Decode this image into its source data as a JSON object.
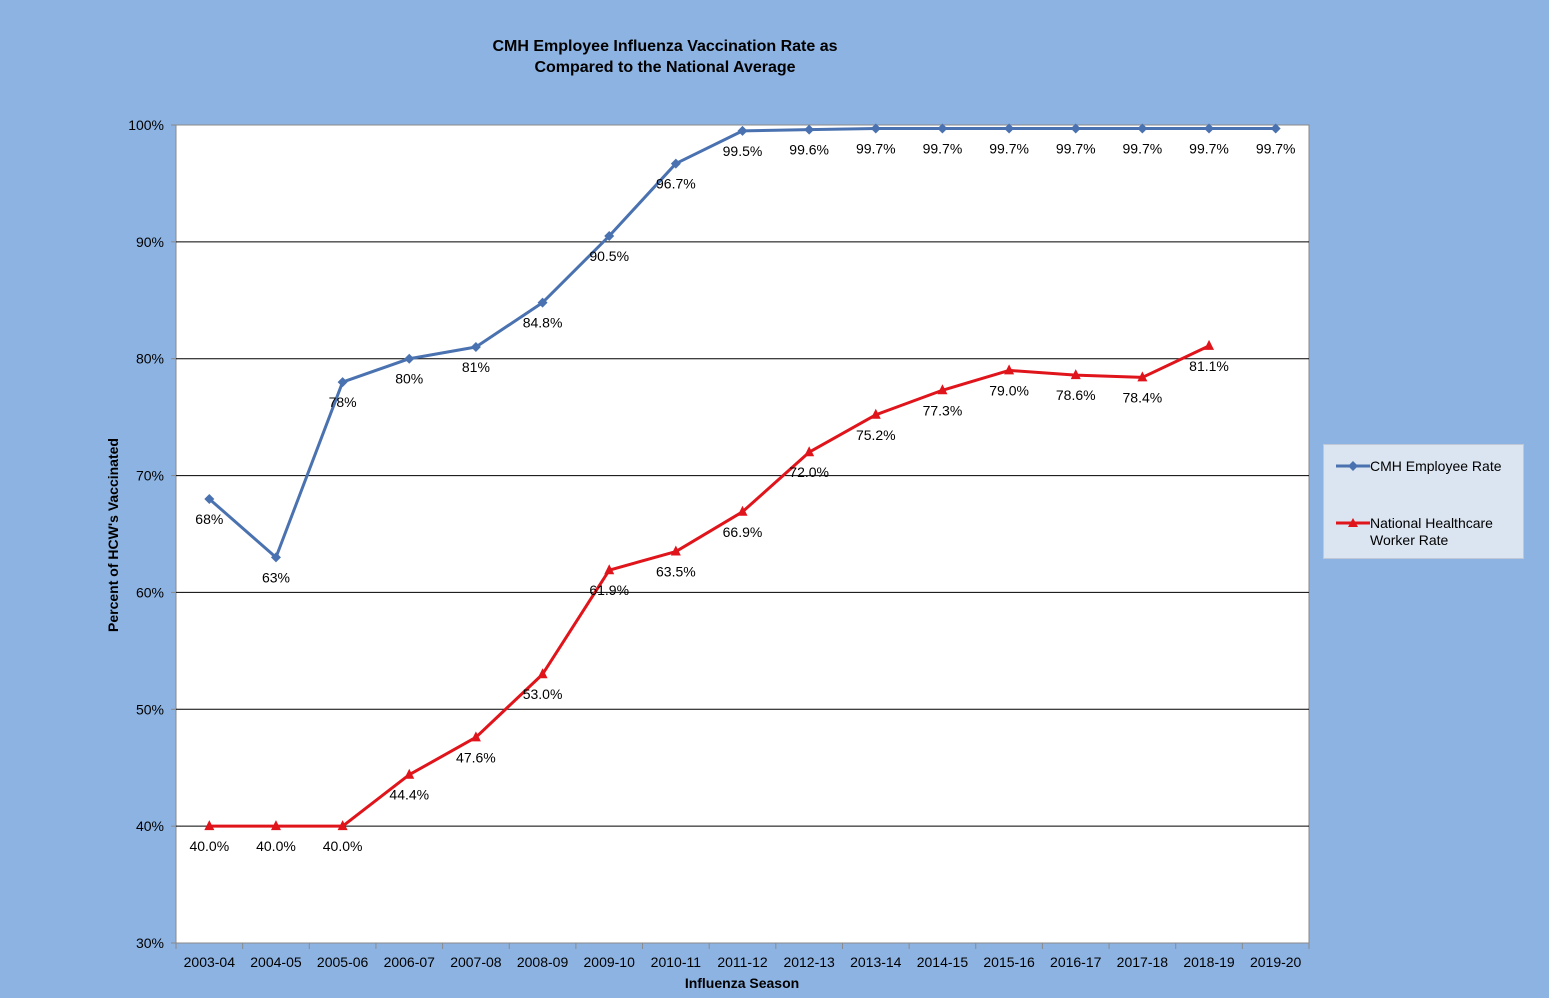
{
  "chart_data": {
    "type": "line",
    "title_line1": "CMH Employee Influenza Vaccination Rate as",
    "title_line2": "Compared to the National Average",
    "xlabel": "Influenza Season",
    "ylabel": "Percent of HCW's Vaccinated",
    "ylim": [
      30,
      100
    ],
    "y_ticks": [
      30,
      40,
      50,
      60,
      70,
      80,
      90,
      100
    ],
    "y_tick_labels": [
      "30%",
      "40%",
      "50%",
      "60%",
      "70%",
      "80%",
      "90%",
      "100%"
    ],
    "grid": true,
    "legend_position": "right",
    "categories": [
      "2003-04",
      "2004-05",
      "2005-06",
      "2006-07",
      "2007-08",
      "2008-09",
      "2009-10",
      "2010-11",
      "2011-12",
      "2012-13",
      "2013-14",
      "2014-15",
      "2015-16",
      "2016-17",
      "2017-18",
      "2018-19",
      "2019-20"
    ],
    "series": [
      {
        "name": "CMH Employee Rate",
        "color": "#4a72b0",
        "marker": "diamond",
        "values": [
          68,
          63,
          78,
          80,
          81,
          84.8,
          90.5,
          96.7,
          99.5,
          99.6,
          99.7,
          99.7,
          99.7,
          99.7,
          99.7,
          99.7,
          99.7
        ],
        "labels": [
          "68%",
          "63%",
          "78%",
          "80%",
          "81%",
          "84.8%",
          "90.5%",
          "96.7%",
          "99.5%",
          "99.6%",
          "99.7%",
          "99.7%",
          "99.7%",
          "99.7%",
          "99.7%",
          "99.7%",
          "99.7%"
        ]
      },
      {
        "name": "National Healthcare Worker Rate",
        "legend_line1": "National Healthcare",
        "legend_line2": "Worker Rate",
        "color": "#e0141b",
        "marker": "triangle",
        "values": [
          40.0,
          40.0,
          40.0,
          44.4,
          47.6,
          53.0,
          61.9,
          63.5,
          66.9,
          72.0,
          75.2,
          77.3,
          79.0,
          78.6,
          78.4,
          81.1,
          null
        ],
        "labels": [
          "40.0%",
          "40.0%",
          "40.0%",
          "44.4%",
          "47.6%",
          "53.0%",
          "61.9%",
          "63.5%",
          "66.9%",
          "72.0%",
          "75.2%",
          "77.3%",
          "79.0%",
          "78.6%",
          "78.4%",
          "81.1%",
          null
        ]
      }
    ]
  }
}
